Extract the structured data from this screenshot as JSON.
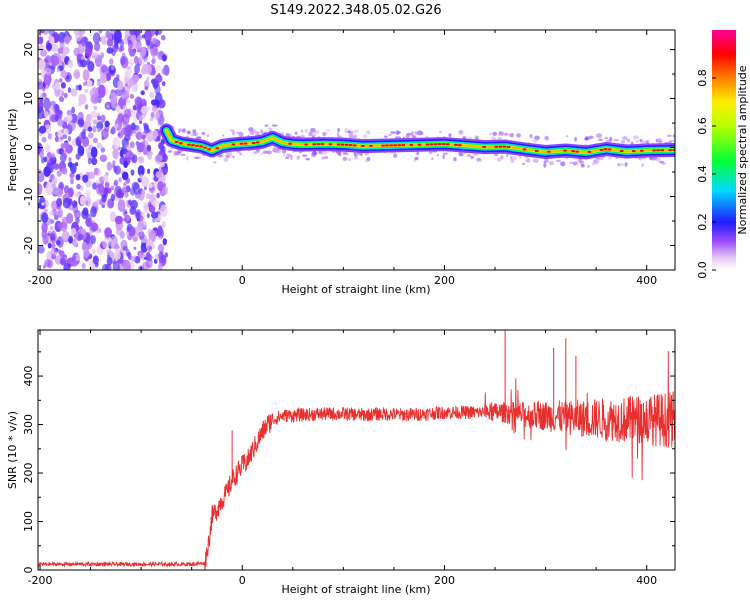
{
  "title": "S149.2022.348.05.02.G26",
  "chart_data": [
    {
      "type": "heatmap",
      "xlabel": "Height of straight line (km)",
      "ylabel": "Frequency (Hz)",
      "xlim": [
        -202,
        428
      ],
      "ylim": [
        -25,
        24
      ],
      "xticks": [
        -200,
        0,
        200,
        400
      ],
      "yticks": [
        -20,
        -10,
        0,
        10,
        20
      ],
      "noise_region_x": [
        -202,
        -75
      ],
      "ridge": {
        "x": [
          -75,
          -70,
          -60,
          -50,
          -40,
          -30,
          -20,
          -10,
          0,
          10,
          20,
          30,
          40,
          50,
          60,
          80,
          100,
          120,
          140,
          160,
          180,
          200,
          220,
          240,
          260,
          280,
          300,
          320,
          340,
          360,
          380,
          400,
          428
        ],
        "y": [
          3.5,
          1.5,
          0.8,
          0.5,
          0.2,
          -0.6,
          0.3,
          0.6,
          0.8,
          0.9,
          1.2,
          2.0,
          1.0,
          0.7,
          0.6,
          0.7,
          0.6,
          0.3,
          0.4,
          0.5,
          0.6,
          0.7,
          0.4,
          0.1,
          0.2,
          -0.4,
          -0.9,
          -0.6,
          -1.0,
          -0.3,
          -0.8,
          -0.6,
          -0.5
        ]
      },
      "colorbar": {
        "label": "Normalized spectral amplitude",
        "range": [
          0,
          1
        ],
        "ticks": [
          0.0,
          0.2,
          0.4,
          0.6,
          0.8
        ],
        "tick_labels": [
          "0.0",
          "0.2",
          "0.4",
          "0.6",
          "0.8"
        ],
        "colormap": "rainbow"
      }
    },
    {
      "type": "line",
      "xlabel": "Height of straight line (km)",
      "ylabel": "SNR (10 * v/v)",
      "xlim": [
        -202,
        428
      ],
      "ylim": [
        0,
        495
      ],
      "xticks": [
        -200,
        0,
        200,
        400
      ],
      "yticks": [
        0,
        100,
        200,
        300,
        400
      ],
      "line_color": "#e8302f",
      "series": [
        {
          "x": [
            -202,
            -150,
            -100,
            -50,
            -37,
            -33,
            -30,
            -25,
            -20,
            -15,
            -10,
            -5,
            0,
            5,
            10,
            15,
            20,
            25,
            30,
            40,
            60,
            80,
            100,
            120,
            140,
            160,
            180,
            200,
            220,
            240,
            260,
            280,
            300,
            320,
            340,
            360,
            380,
            400,
            428
          ],
          "values": [
            12,
            12,
            12,
            12,
            14,
            60,
            110,
            125,
            145,
            160,
            185,
            200,
            215,
            225,
            245,
            265,
            285,
            300,
            310,
            318,
            320,
            322,
            322,
            320,
            322,
            320,
            322,
            325,
            325,
            325,
            325,
            320,
            318,
            315,
            312,
            312,
            310,
            310,
            310
          ]
        }
      ],
      "spikes": [
        {
          "x": 260,
          "value": 495
        },
        {
          "x": 320,
          "value": 478
        },
        {
          "x": 308,
          "value": 458
        },
        {
          "x": 330,
          "value": 442
        },
        {
          "x": -10,
          "value": 288
        }
      ]
    }
  ]
}
